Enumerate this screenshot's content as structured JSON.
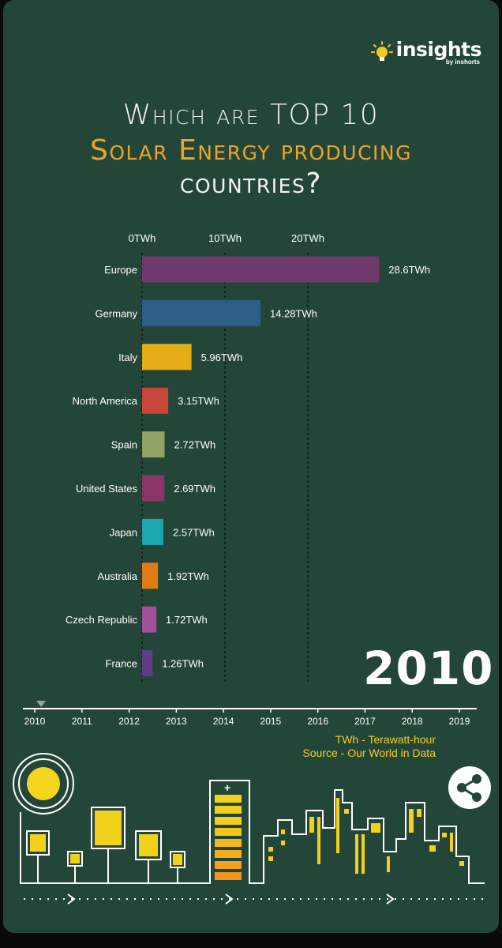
{
  "brand": {
    "name": "insights",
    "byline": "by inshorts"
  },
  "title": {
    "line1": "Which are TOP 10",
    "line2": "Solar Energy producing",
    "line3": "countries?"
  },
  "chart_data": {
    "type": "bar",
    "orientation": "horizontal",
    "unit": "TWh",
    "categories": [
      "Europe",
      "Germany",
      "Italy",
      "North America",
      "Spain",
      "United States",
      "Japan",
      "Australia",
      "Czech Republic",
      "France"
    ],
    "values": [
      28.6,
      14.28,
      5.96,
      3.15,
      2.72,
      2.69,
      2.57,
      1.92,
      1.72,
      1.26
    ],
    "value_labels": [
      "28.6TWh",
      "14.28TWh",
      "5.96TWh",
      "3.15TWh",
      "2.72TWh",
      "2.69TWh",
      "2.57TWh",
      "1.92TWh",
      "1.72TWh",
      "1.26TWh"
    ],
    "colors": [
      "#6d3a6a",
      "#2b5f8a",
      "#e4ad18",
      "#c9463a",
      "#8fa362",
      "#8c3569",
      "#1ea6af",
      "#e07b16",
      "#a54f9c",
      "#5c3f87"
    ],
    "xticks": [
      0,
      10,
      20
    ],
    "xtick_labels": [
      "0TWh",
      "10TWh",
      "20TWh"
    ],
    "xlim": [
      0,
      30
    ],
    "grid": true
  },
  "year": "2010",
  "timeline": {
    "years": [
      "2010",
      "2011",
      "2012",
      "2013",
      "2014",
      "2015",
      "2016",
      "2017",
      "2018",
      "2019"
    ],
    "current": "2010"
  },
  "notes": {
    "unit_note": "TWh - Terawatt-hour",
    "source": "Source - Our World in Data"
  },
  "icons": {
    "share": "share-icon",
    "bulb": "lightbulb-icon"
  },
  "palette": {
    "background": "#244638",
    "accent": "#e9a527",
    "highlight": "#f2d11d"
  }
}
